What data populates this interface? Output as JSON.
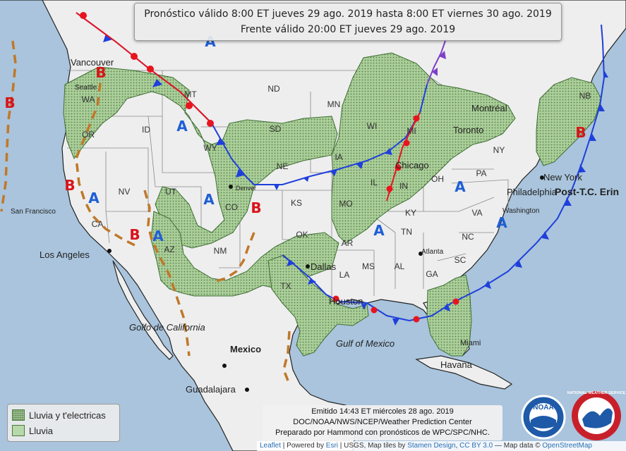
{
  "header": {
    "line1": "Pronóstico válido 8:00 ET jueves 29 ago. 2019 hasta 8:00 ET viernes 30 ago. 2019",
    "line2": "Frente válido 20:00 ET jueves 29 ago. 2019"
  },
  "legend": {
    "storms_label": "Lluvia y t'electricas",
    "rain_label": "Lluvia"
  },
  "issued": {
    "line1": "Emitido 14:43 ET miércoles 28 ago. 2019",
    "line2": "DOC/NOAA/NWS/NCEP/Weather Prediction Center",
    "line3": "Preparado por Hammond con pronósticos de WPC/SPC/NHC."
  },
  "attribution": {
    "leaflet": "Leaflet",
    "powered_by": " | Powered by ",
    "esri": "Esri",
    "rest": " | USGS, Map tiles by ",
    "stamen": "Stamen Design",
    "cc": "CC BY 3.0",
    "mapdata": " — Map data © ",
    "osm": "OpenStreetMap"
  },
  "pressure_centers": {
    "high": "A",
    "low": "B"
  },
  "front_label": "Post-T.C. Erin",
  "places": {
    "states": [
      "WA",
      "OR",
      "ID",
      "MT",
      "WY",
      "ND",
      "SD",
      "NE",
      "CO",
      "UT",
      "NV",
      "CA",
      "AZ",
      "NM",
      "KS",
      "OK",
      "TX",
      "MN",
      "IA",
      "MO",
      "AR",
      "LA",
      "MS",
      "AL",
      "GA",
      "TN",
      "KY",
      "IL",
      "IN",
      "OH",
      "WI",
      "MI",
      "PA",
      "NY",
      "VA",
      "NC",
      "SC",
      "NB"
    ],
    "cities": [
      "Vancouver",
      "Seattle",
      "San Francisco",
      "Los Angeles",
      "Denver",
      "Dallas",
      "Houston",
      "Chicago",
      "Toronto",
      "Montréal",
      "New York",
      "Philadelphia",
      "Washington",
      "Atlanta",
      "Miami",
      "Havana",
      "Mexico",
      "Guadalajara"
    ],
    "water": [
      "Golfo de California",
      "Gulf of Mexico"
    ]
  },
  "logos": {
    "noaa": "NOAA",
    "nws": "NATIONAL WEATHER SERVICE"
  },
  "colors": {
    "ocean": "#a9c4dc",
    "land": "#eeeeee",
    "precip_fill": "#a9cf9a",
    "cold_front": "#1f3fdb",
    "warm_front": "#e8141e",
    "occluded": "#7e3fc8",
    "trough": "#c0782a",
    "high": "#1f5fd4",
    "low": "#d8141a"
  }
}
